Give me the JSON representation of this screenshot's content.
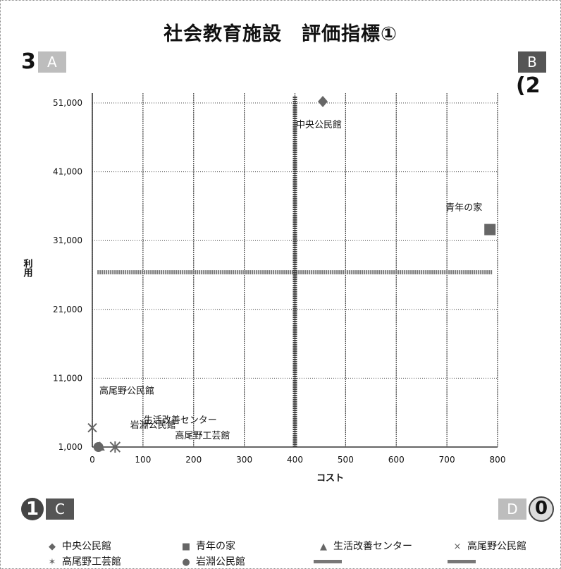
{
  "chart_data": {
    "type": "scatter",
    "title": "社会教育施設　評価指標①",
    "xlabel": "コスト",
    "ylabel": "利用",
    "xlim": [
      0,
      800
    ],
    "ylim": [
      1000,
      51000
    ],
    "xticks": [
      0,
      100,
      200,
      300,
      400,
      500,
      600,
      700,
      800
    ],
    "xtick_labels": [
      "0",
      "100",
      "200",
      "300",
      "400",
      "500",
      "600",
      "700",
      "800"
    ],
    "yticks": [
      1000,
      11000,
      21000,
      31000,
      41000,
      51000
    ],
    "ytick_labels": [
      "1,000",
      "11,000",
      "21,000",
      "31,000",
      "41,000",
      "51,000"
    ],
    "grid": true,
    "legend_position": "bottom",
    "series": [
      {
        "name": "中央公民館",
        "marker": "diamond",
        "points": [
          {
            "x": 455,
            "y": 51200
          }
        ],
        "label": "中央公民館"
      },
      {
        "name": "青年の家",
        "marker": "square",
        "points": [
          {
            "x": 785,
            "y": 32600
          }
        ],
        "label": "青年の家"
      },
      {
        "name": "生活改善センター",
        "marker": "triangle",
        "points": [
          {
            "x": 15,
            "y": 1100
          }
        ],
        "label": "生活改善センター"
      },
      {
        "name": "高尾野公民館",
        "marker": "x",
        "points": [
          {
            "x": 0,
            "y": 3800
          }
        ],
        "label": "高尾野公民館"
      },
      {
        "name": "高尾野工芸館",
        "marker": "star",
        "points": [
          {
            "x": 45,
            "y": 1000
          }
        ],
        "label": "高尾野工芸館"
      },
      {
        "name": "岩淵公民館",
        "marker": "circle",
        "points": [
          {
            "x": 12,
            "y": 1000
          }
        ],
        "label": "岩淵公民館"
      }
    ],
    "reference_lines": [
      {
        "orientation": "horizontal",
        "y": 26400,
        "x_range": [
          10,
          790
        ]
      },
      {
        "orientation": "vertical",
        "x": 400,
        "y_range": [
          1000,
          52000
        ]
      }
    ]
  },
  "quadrants": {
    "top_left": {
      "number": "3",
      "box": "A"
    },
    "top_right": {
      "number": "(2",
      "box": "B"
    },
    "bottom_left": {
      "number": "1",
      "box": "C"
    },
    "bottom_right": {
      "number": "0",
      "box": "D"
    }
  },
  "colors": {
    "marker": "#666666",
    "reference_line": "#777777",
    "grid": "#444444"
  }
}
